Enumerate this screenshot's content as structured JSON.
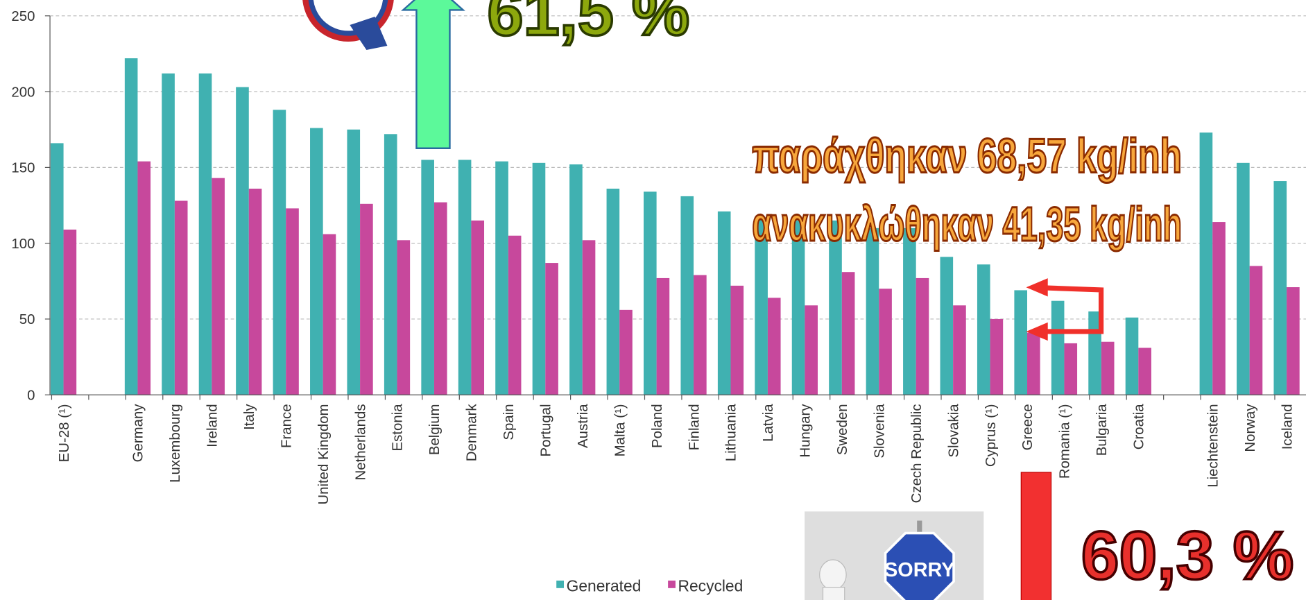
{
  "chart_data": {
    "type": "bar",
    "categories": [
      "EU-28 (¹)",
      null,
      "Germany",
      "Luxembourg",
      "Ireland",
      "Italy",
      "France",
      "United Kingdom",
      "Netherlands",
      "Estonia",
      "Belgium",
      "Denmark",
      "Spain",
      "Portugal",
      "Austria",
      "Malta (¹)",
      "Poland",
      "Finland",
      "Lithuania",
      "Latvia",
      "Hungary",
      "Sweden",
      "Slovenia",
      "Czech Republic",
      "Slovakia",
      "Cyprus (¹)",
      "Greece",
      "Romania (¹)",
      "Bulgaria",
      "Croatia",
      null,
      "Liechtenstein",
      "Norway",
      "Iceland"
    ],
    "series": [
      {
        "name": "Generated",
        "color": "#40b1b1",
        "values": [
          166,
          null,
          222,
          212,
          212,
          203,
          188,
          176,
          175,
          172,
          155,
          155,
          154,
          153,
          152,
          136,
          134,
          131,
          121,
          117,
          115,
          115,
          110,
          110,
          91,
          86,
          69,
          62,
          55,
          51,
          null,
          173,
          153,
          141
        ]
      },
      {
        "name": "Recycled",
        "color": "#c7489c",
        "values": [
          109,
          null,
          154,
          128,
          143,
          136,
          123,
          106,
          126,
          102,
          127,
          115,
          105,
          87,
          102,
          56,
          77,
          79,
          72,
          64,
          59,
          81,
          70,
          77,
          59,
          50,
          41,
          34,
          35,
          31,
          null,
          114,
          85,
          71
        ]
      }
    ],
    "ylim": [
      0,
      250
    ],
    "yticks": [
      0,
      50,
      100,
      150,
      200,
      250
    ],
    "grid": true,
    "annotations": [
      "61,5 %",
      "παράχθηκαν 68,57 kg/inh",
      "ανακυκλώθηκαν 41,35 kg/inh",
      "60,3 %",
      "SORRY"
    ]
  }
}
